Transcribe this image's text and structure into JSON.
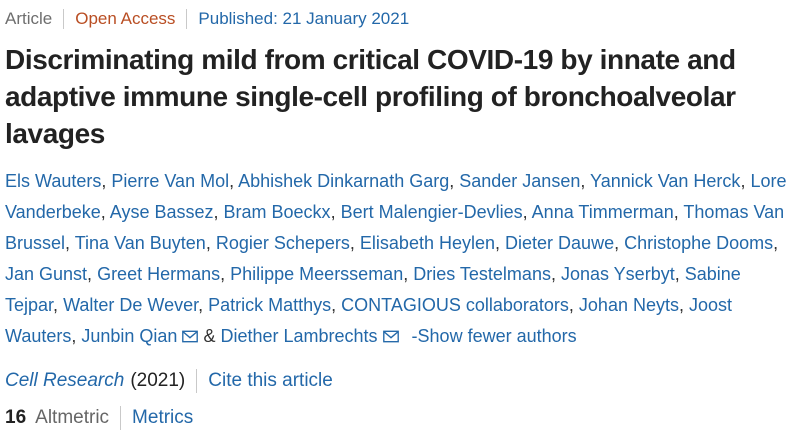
{
  "meta": {
    "article_type": "Article",
    "access_label": "Open Access",
    "published": "Published: 21 January 2021"
  },
  "title": "Discriminating mild from critical COVID-19 by innate and adaptive immune single-cell profiling of bronchoalveolar lavages",
  "authors": {
    "list": [
      {
        "name": "Els Wauters"
      },
      {
        "name": "Pierre Van Mol"
      },
      {
        "name": "Abhishek Dinkarnath Garg"
      },
      {
        "name": "Sander Jansen"
      },
      {
        "name": "Yannick Van Herck"
      },
      {
        "name": "Lore Vanderbeke"
      },
      {
        "name": "Ayse Bassez"
      },
      {
        "name": "Bram Boeckx"
      },
      {
        "name": "Bert Malengier-Devlies"
      },
      {
        "name": "Anna Timmerman"
      },
      {
        "name": "Thomas Van Brussel"
      },
      {
        "name": "Tina Van Buyten"
      },
      {
        "name": "Rogier Schepers"
      },
      {
        "name": "Elisabeth Heylen"
      },
      {
        "name": "Dieter Dauwe"
      },
      {
        "name": "Christophe Dooms"
      },
      {
        "name": "Jan Gunst"
      },
      {
        "name": "Greet Hermans"
      },
      {
        "name": "Philippe Meersseman"
      },
      {
        "name": "Dries Testelmans"
      },
      {
        "name": "Jonas Yserbyt"
      },
      {
        "name": "Sabine Tejpar"
      },
      {
        "name": "Walter De Wever"
      },
      {
        "name": "Patrick Matthys"
      },
      {
        "name": "CONTAGIOUS collaborators"
      },
      {
        "name": "Johan Neyts"
      },
      {
        "name": "Joost Wauters"
      },
      {
        "name": "Junbin Qian",
        "email": true
      },
      {
        "name": "Diether Lambrechts",
        "email": true
      }
    ],
    "show_fewer_label": "-Show fewer authors"
  },
  "journal": {
    "name": "Cell Research",
    "year": "(2021)",
    "cite_label": "Cite this article"
  },
  "metrics": {
    "altmetric_score": "16",
    "altmetric_label": "Altmetric",
    "metrics_label": "Metrics"
  },
  "colors": {
    "link_blue": "#2368a9",
    "open_access_rust": "#b94e23",
    "muted_gray": "#6e6e6e",
    "divider_gray": "#c9c9c9",
    "text_dark": "#222222"
  }
}
